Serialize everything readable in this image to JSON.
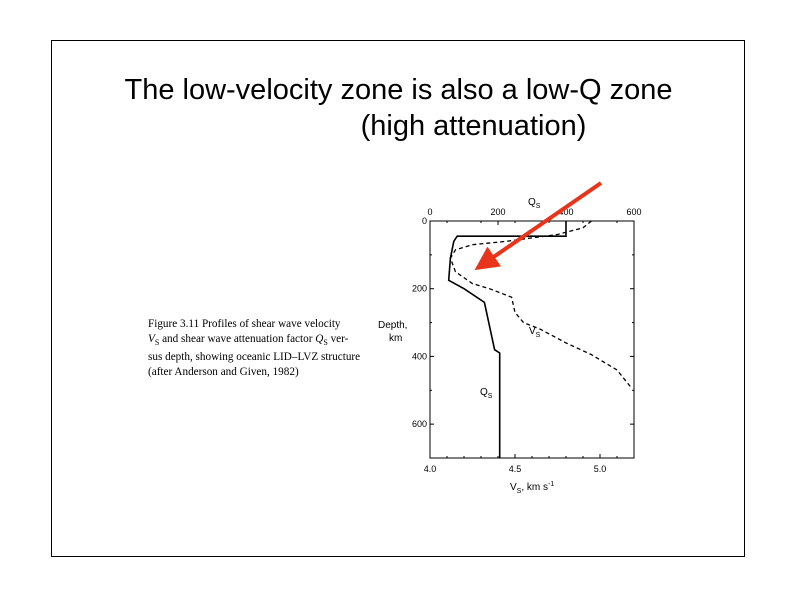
{
  "slide": {
    "title_line1": "The low-velocity zone is also a low-Q zone",
    "title_line2": "(high attenuation)"
  },
  "figure_caption": {
    "lines": [
      "Figure 3.11  Profiles of shear wave velocity",
      "V_S and shear wave attenuation factor Q_S ver-",
      "sus depth, showing oceanic LID–LVZ structure",
      "(after Anderson and Given, 1982)"
    ]
  },
  "chart_data": {
    "type": "line",
    "top_axis_label": "Q",
    "top_axis_label_sub": "S",
    "top_ticks": [
      "0",
      "200",
      "400",
      "600"
    ],
    "bottom_axis_label": "V",
    "bottom_axis_label_sub": "S",
    "bottom_axis_unit": ", km s",
    "bottom_axis_unit_sup": "-1",
    "bottom_ticks": [
      "4.0",
      "4.5",
      "5.0"
    ],
    "depth_label_line1": "Depth,",
    "depth_label_line2": "km",
    "depth_ticks": [
      "0",
      "200",
      "400",
      "600"
    ],
    "vs_range": [
      4.0,
      5.2
    ],
    "qs_range": [
      0,
      600
    ],
    "depth_range": [
      0,
      700
    ],
    "series": [
      {
        "name": "V",
        "name_sub": "S",
        "axis": "bottom",
        "style": "dashed",
        "points": [
          [
            4.95,
            0
          ],
          [
            4.9,
            20
          ],
          [
            4.75,
            40
          ],
          [
            4.45,
            60
          ],
          [
            4.25,
            70
          ],
          [
            4.15,
            85
          ],
          [
            4.12,
            110
          ],
          [
            4.15,
            150
          ],
          [
            4.25,
            185
          ],
          [
            4.35,
            200
          ],
          [
            4.48,
            225
          ],
          [
            4.5,
            270
          ],
          [
            4.55,
            300
          ],
          [
            4.65,
            320
          ],
          [
            4.8,
            360
          ],
          [
            4.95,
            395
          ],
          [
            5.1,
            440
          ],
          [
            5.18,
            490
          ]
        ]
      },
      {
        "name": "Q",
        "name_sub": "S",
        "axis": "top",
        "style": "solid",
        "points": [
          [
            400,
            0
          ],
          [
            400,
            45
          ],
          [
            80,
            45
          ],
          [
            70,
            60
          ],
          [
            60,
            110
          ],
          [
            55,
            175
          ],
          [
            100,
            200
          ],
          [
            160,
            240
          ],
          [
            190,
            380
          ],
          [
            205,
            390
          ],
          [
            205,
            700
          ]
        ]
      }
    ],
    "annotation": {
      "type": "arrow",
      "color": "#e8341a",
      "points_to": {
        "vs": 4.32,
        "depth": 125
      }
    }
  }
}
